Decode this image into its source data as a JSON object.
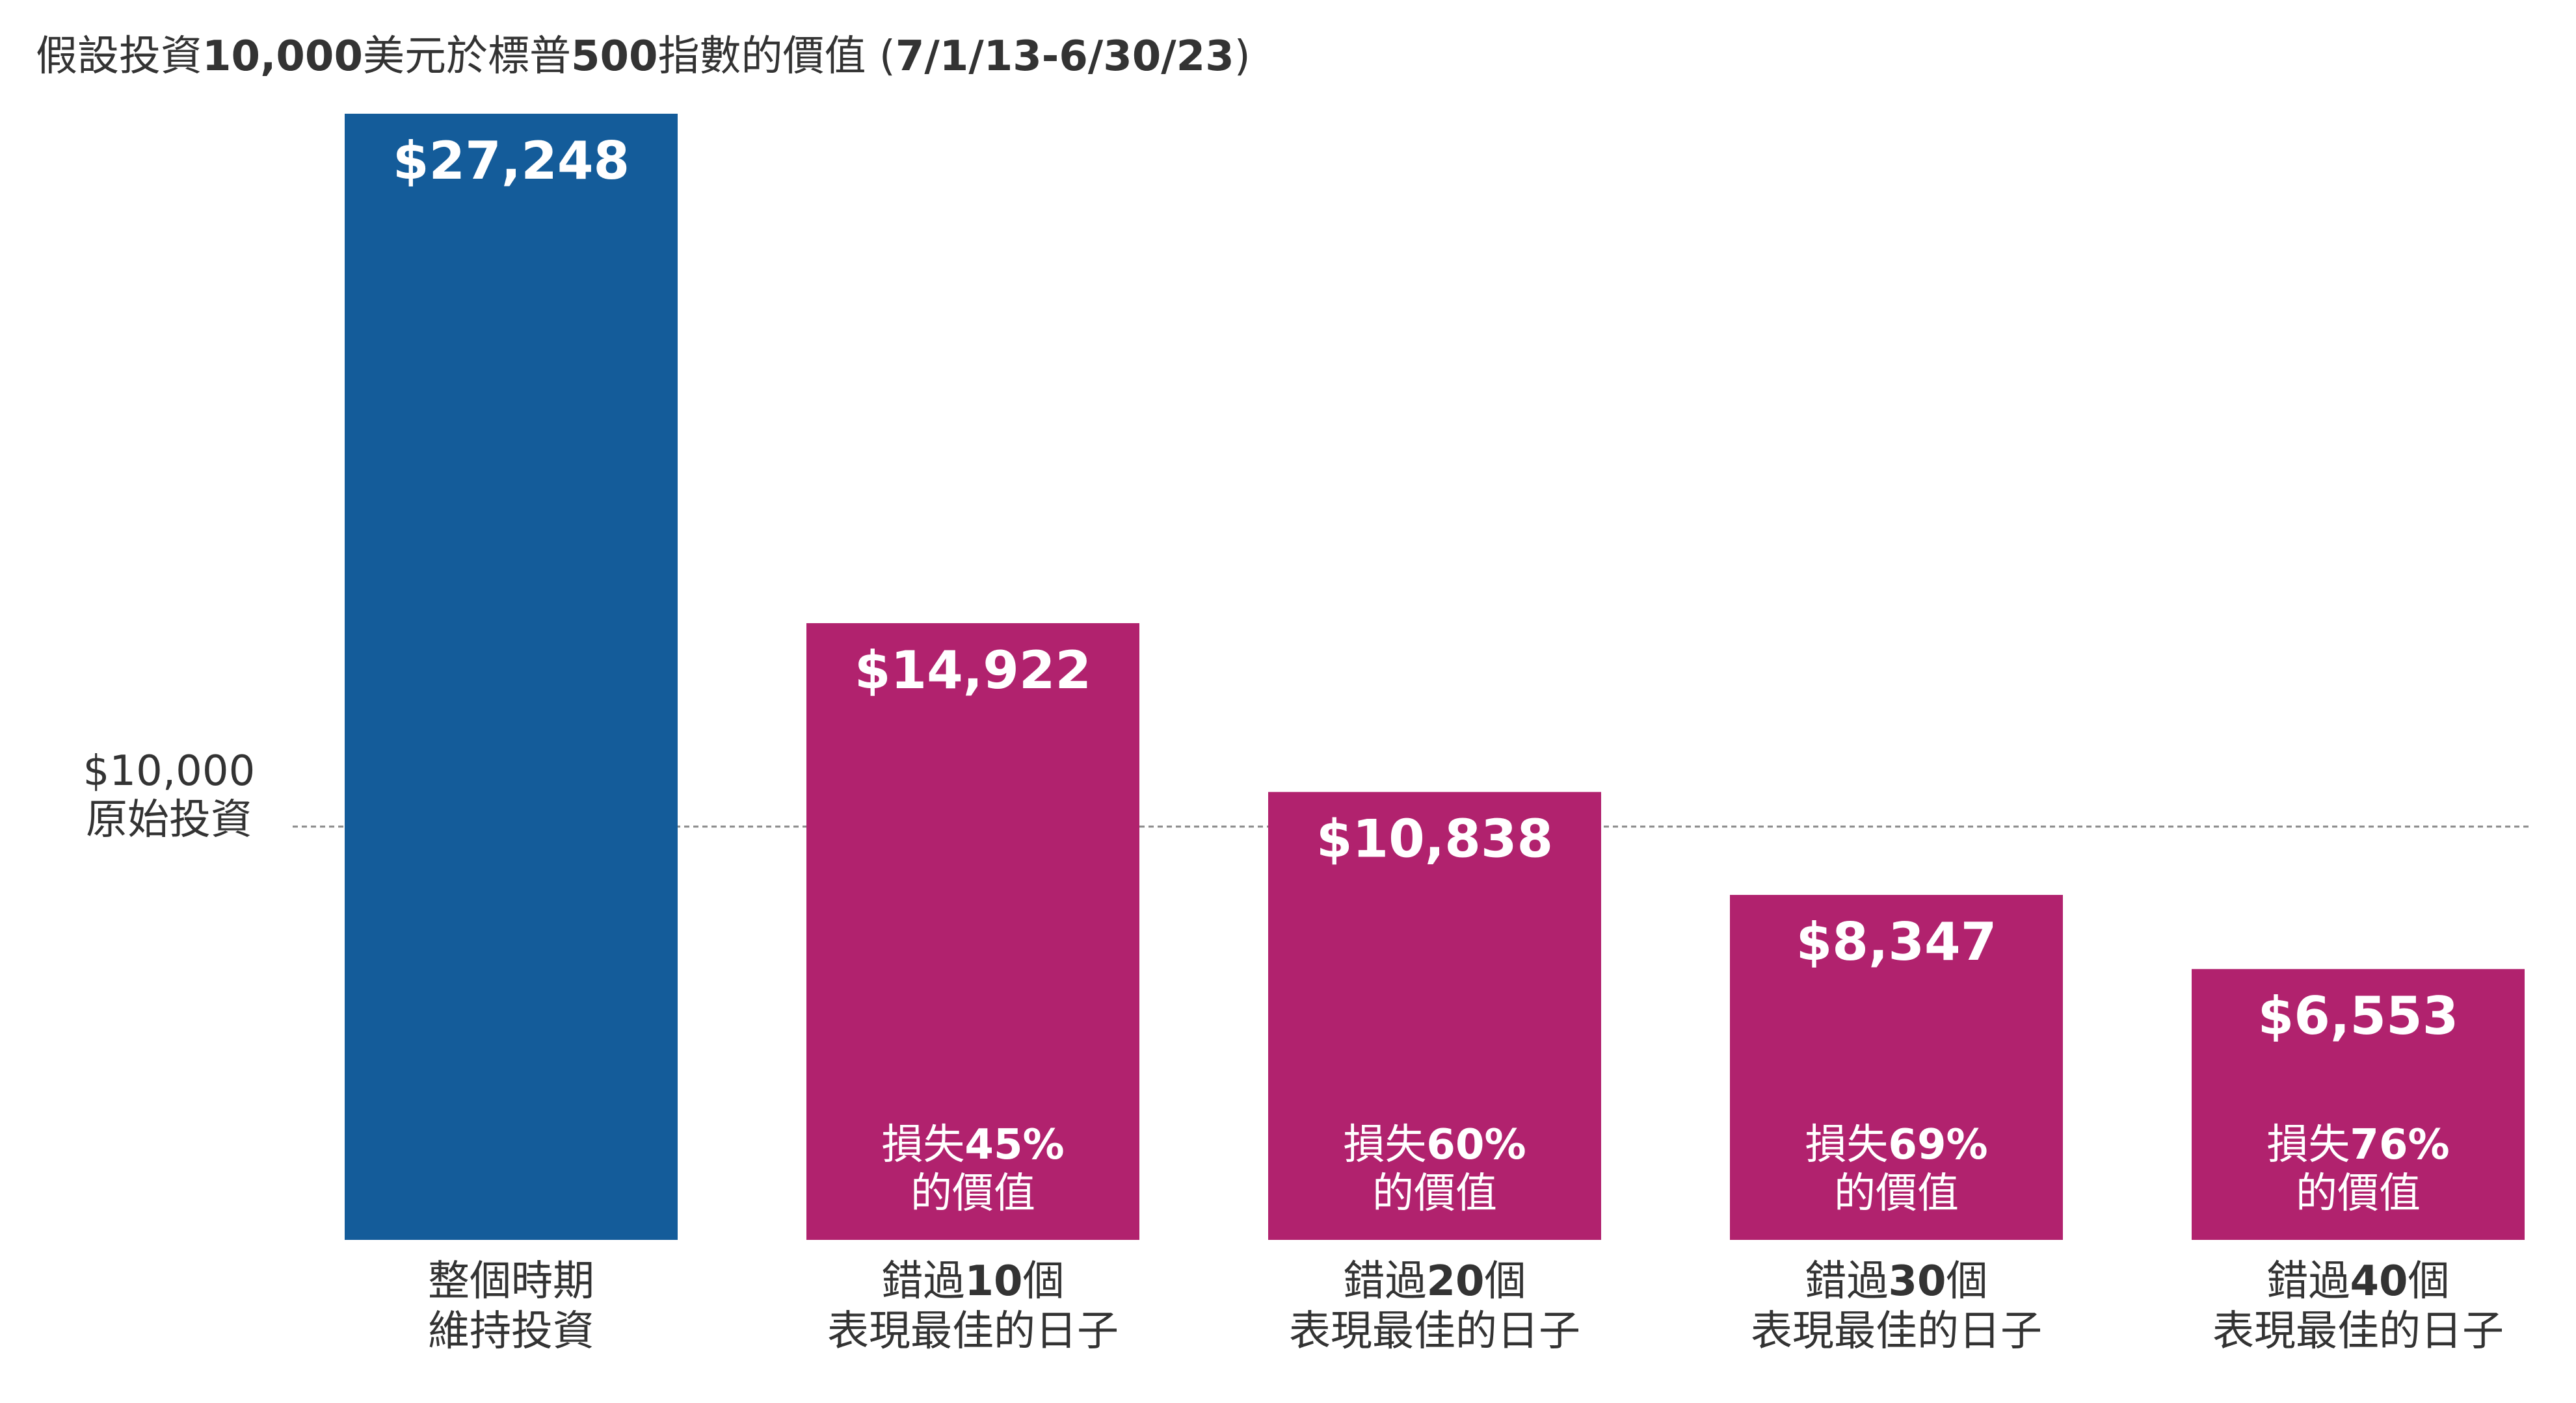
{
  "title": {
    "text": "假設投資10,000美元於標普500指數的價值 (7/1/13-6/30/23)",
    "runs": [
      {
        "t": "假設投資",
        "b": false
      },
      {
        "t": "10,000",
        "b": true
      },
      {
        "t": "美元於標普",
        "b": false
      },
      {
        "t": "500",
        "b": true
      },
      {
        "t": "指數的價值 (",
        "b": false
      },
      {
        "t": "7/1/13-6/30/23",
        "b": true
      },
      {
        "t": ")",
        "b": false
      }
    ]
  },
  "reference_line": {
    "value": 10000,
    "label_line1": "$10,000",
    "label_line2": "原始投資"
  },
  "colors": {
    "stay_invested": "#145c9a",
    "missed_days": "#b1226e",
    "reference_line": "#8a8a8a",
    "text": "#333333",
    "bar_text": "#ffffff"
  },
  "chart_data": {
    "type": "bar",
    "title": "假設投資10,000美元於標普500指數的價值 (7/1/13-6/30/23)",
    "categories": [
      "整個時期 維持投資",
      "錯過10個 表現最佳的日子",
      "錯過20個 表現最佳的日子",
      "錯過30個 表現最佳的日子",
      "錯過40個 表現最佳的日子"
    ],
    "values": [
      27248,
      14922,
      10838,
      8347,
      6553
    ],
    "ylim": [
      0,
      27248
    ],
    "grid": false,
    "bars": [
      {
        "value": 27248,
        "value_label": "$27,248",
        "color_key": "stay_invested",
        "cat_line1": [
          {
            "t": "整個時期",
            "b": false
          }
        ],
        "cat_line2": "維持投資",
        "loss_line1": [],
        "loss_line2": ""
      },
      {
        "value": 14922,
        "value_label": "$14,922",
        "color_key": "missed_days",
        "cat_line1": [
          {
            "t": "錯過",
            "b": false
          },
          {
            "t": "10",
            "b": true
          },
          {
            "t": "個",
            "b": false
          }
        ],
        "cat_line2": "表現最佳的日子",
        "loss_line1": [
          {
            "t": "損失",
            "b": false
          },
          {
            "t": "45%",
            "b": true
          }
        ],
        "loss_line2": "的價值"
      },
      {
        "value": 10838,
        "value_label": "$10,838",
        "color_key": "missed_days",
        "cat_line1": [
          {
            "t": "錯過",
            "b": false
          },
          {
            "t": "20",
            "b": true
          },
          {
            "t": "個",
            "b": false
          }
        ],
        "cat_line2": "表現最佳的日子",
        "loss_line1": [
          {
            "t": "損失",
            "b": false
          },
          {
            "t": "60%",
            "b": true
          }
        ],
        "loss_line2": "的價值"
      },
      {
        "value": 8347,
        "value_label": "$8,347",
        "color_key": "missed_days",
        "cat_line1": [
          {
            "t": "錯過",
            "b": false
          },
          {
            "t": "30",
            "b": true
          },
          {
            "t": "個",
            "b": false
          }
        ],
        "cat_line2": "表現最佳的日子",
        "loss_line1": [
          {
            "t": "損失",
            "b": false
          },
          {
            "t": "69%",
            "b": true
          }
        ],
        "loss_line2": "的價值"
      },
      {
        "value": 6553,
        "value_label": "$6,553",
        "color_key": "missed_days",
        "cat_line1": [
          {
            "t": "錯過",
            "b": false
          },
          {
            "t": "40",
            "b": true
          },
          {
            "t": "個",
            "b": false
          }
        ],
        "cat_line2": "表現最佳的日子",
        "loss_line1": [
          {
            "t": "損失",
            "b": false
          },
          {
            "t": "76%",
            "b": true
          }
        ],
        "loss_line2": "的價值"
      }
    ]
  }
}
